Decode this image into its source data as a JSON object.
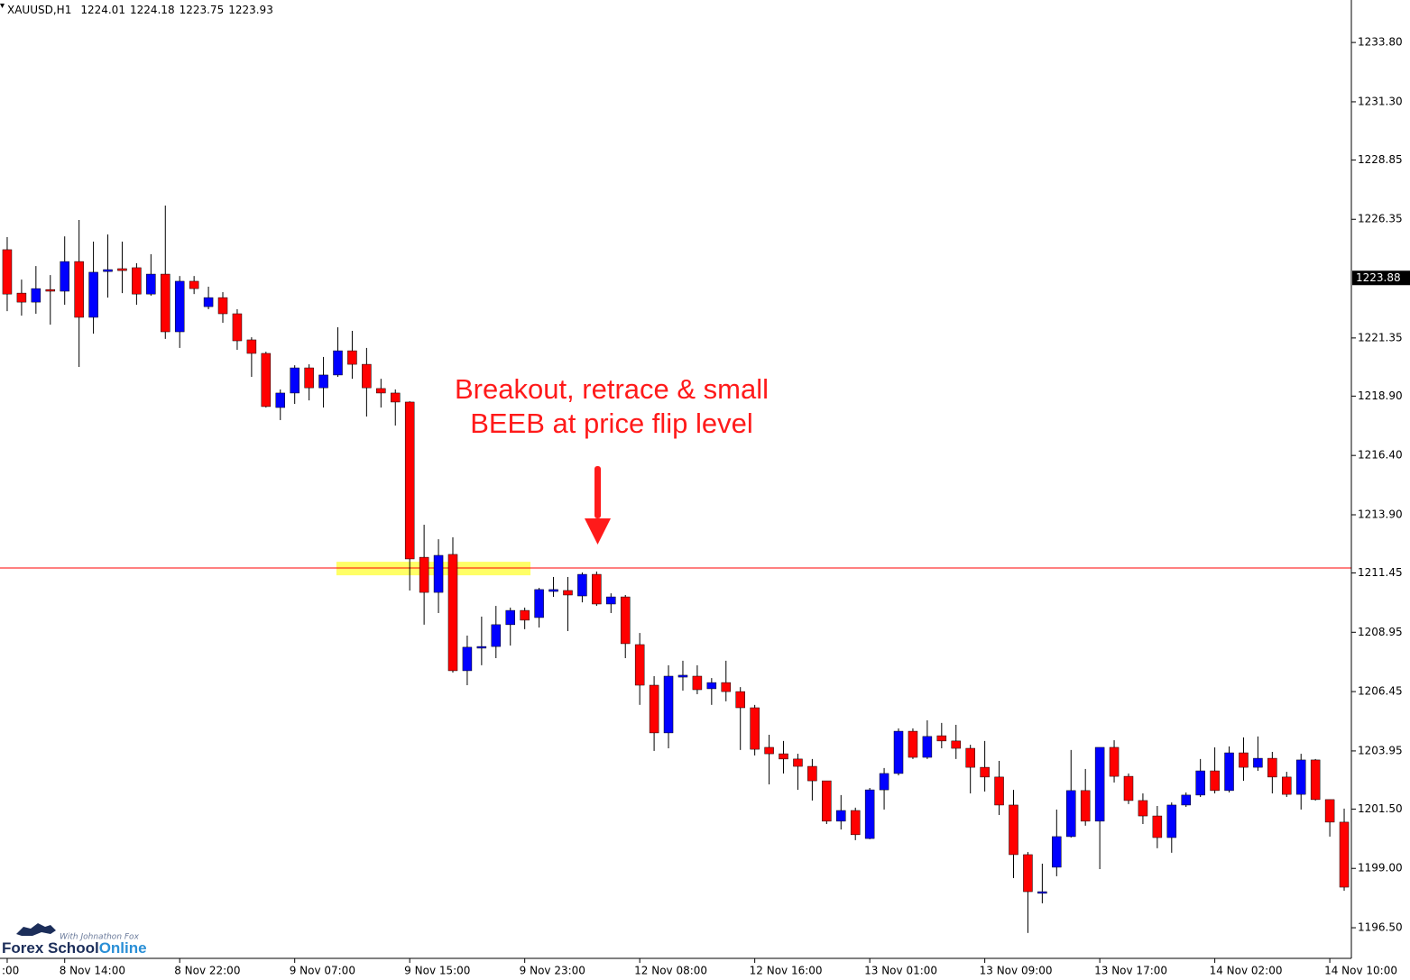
{
  "header": {
    "symbol": "XAUUSD,H1",
    "ohlc": [
      1224.01,
      1224.18,
      1223.75,
      1223.93
    ]
  },
  "annotation": {
    "lines": [
      "Breakout, retrace & small",
      "BEEB at price flip level"
    ],
    "color": "#ff1a1a"
  },
  "logo": {
    "tagline": "With Johnathon Fox",
    "name": "Forex School",
    "name_accent": "Online"
  },
  "chart_data": {
    "type": "candlestick",
    "up_color": "#0000ff",
    "down_color": "#ff0000",
    "wick_color": "#000000",
    "categories": [
      ":00",
      null,
      null,
      null,
      "8 Nov 14:00",
      null,
      null,
      null,
      null,
      null,
      null,
      null,
      "8 Nov 22:00",
      null,
      null,
      null,
      null,
      null,
      null,
      null,
      "9 Nov 07:00",
      null,
      null,
      null,
      null,
      null,
      null,
      null,
      "9 Nov 15:00",
      null,
      null,
      null,
      null,
      null,
      null,
      null,
      "9 Nov 23:00",
      null,
      null,
      null,
      null,
      null,
      null,
      null,
      "12 Nov 08:00",
      null,
      null,
      null,
      null,
      null,
      null,
      null,
      "12 Nov 16:00",
      null,
      null,
      null,
      null,
      null,
      null,
      null,
      "13 Nov 01:00",
      null,
      null,
      null,
      null,
      null,
      null,
      null,
      "13 Nov 09:00",
      null,
      null,
      null,
      null,
      null,
      null,
      null,
      "13 Nov 17:00",
      null,
      null,
      null,
      null,
      null,
      null,
      null,
      "14 Nov 02:00",
      null,
      null,
      null,
      null,
      null,
      null,
      null,
      "14 Nov 10:00",
      null
    ],
    "open": [
      1225.07,
      1223.24,
      1222.86,
      1223.39,
      1223.32,
      1224.57,
      1222.22,
      1224.15,
      1224.27,
      1224.31,
      1223.2,
      1224.04,
      1221.61,
      1223.74,
      1222.67,
      1223.05,
      1222.37,
      1221.27,
      1220.7,
      1218.42,
      1219.03,
      1220.09,
      1219.25,
      1219.79,
      1220.81,
      1220.24,
      1219.22,
      1219.03,
      1218.65,
      1212.11,
      1210.63,
      1212.23,
      1207.33,
      1208.28,
      1208.35,
      1209.27,
      1209.87,
      1209.57,
      1210.67,
      1210.71,
      1210.48,
      1211.39,
      1210.14,
      1210.44,
      1208.43,
      1206.72,
      1204.71,
      1207.06,
      1207.1,
      1206.57,
      1206.83,
      1206.45,
      1205.77,
      1204.1,
      1203.83,
      1203.61,
      1203.3,
      1202.69,
      1200.99,
      1201.44,
      1200.26,
      1202.31,
      1203.0,
      1204.78,
      1203.68,
      1204.59,
      1204.37,
      1204.06,
      1203.26,
      1202.85,
      1201.67,
      1199.58,
      1197.95,
      1199.05,
      1200.34,
      1202.28,
      1200.99,
      1204.1,
      1202.88,
      1201.86,
      1201.21,
      1200.3,
      1201.67,
      1202.09,
      1203.11,
      1202.28,
      1203.87,
      1203.26,
      1203.64,
      1202.85,
      1202.12,
      1203.57,
      1201.9,
      1200.95
    ],
    "high": [
      1225.6,
      1223.81,
      1224.38,
      1224.0,
      1225.63,
      1226.32,
      1225.41,
      1225.71,
      1225.41,
      1224.5,
      1224.88,
      1226.93,
      1223.96,
      1223.96,
      1223.51,
      1223.28,
      1222.56,
      1221.38,
      1220.77,
      1219.18,
      1220.2,
      1220.24,
      1220.55,
      1221.8,
      1221.65,
      1220.93,
      1219.63,
      1219.18,
      1218.68,
      1213.48,
      1212.87,
      1212.95,
      1208.81,
      1209.61,
      1210.06,
      1209.99,
      1209.99,
      1210.82,
      1211.28,
      1211.28,
      1211.47,
      1211.51,
      1210.59,
      1210.52,
      1208.92,
      1207.1,
      1207.56,
      1207.75,
      1207.56,
      1207.02,
      1207.75,
      1206.64,
      1205.89,
      1204.63,
      1204.37,
      1203.83,
      1203.61,
      1202.69,
      1202.09,
      1201.56,
      1202.39,
      1203.23,
      1204.9,
      1204.9,
      1205.24,
      1205.13,
      1205.05,
      1204.21,
      1204.37,
      1203.53,
      1202.31,
      1199.69,
      1199.2,
      1201.48,
      1203.99,
      1203.19,
      1204.1,
      1204.4,
      1203.0,
      1202.16,
      1201.63,
      1201.78,
      1202.2,
      1203.61,
      1204.1,
      1204.14,
      1204.52,
      1204.56,
      1203.91,
      1203.07,
      1203.83,
      1203.61,
      1201.9,
      1201.52
    ],
    "low": [
      1222.48,
      1222.29,
      1222.37,
      1221.91,
      1222.75,
      1220.13,
      1221.53,
      1223.05,
      1223.24,
      1222.75,
      1223.13,
      1221.31,
      1220.93,
      1223.2,
      1222.56,
      1221.99,
      1220.85,
      1219.71,
      1218.42,
      1217.89,
      1218.57,
      1218.72,
      1218.42,
      1219.71,
      1219.63,
      1218.04,
      1218.42,
      1217.66,
      1210.71,
      1209.27,
      1209.76,
      1207.25,
      1206.72,
      1207.56,
      1207.86,
      1208.39,
      1209.08,
      1209.15,
      1210.44,
      1209.0,
      1210.21,
      1210.06,
      1209.76,
      1207.86,
      1205.89,
      1203.95,
      1204.06,
      1206.49,
      1206.34,
      1205.89,
      1206.04,
      1203.99,
      1203.76,
      1202.54,
      1203.0,
      1202.31,
      1201.86,
      1200.87,
      1200.64,
      1200.19,
      1200.23,
      1201.48,
      1202.92,
      1203.61,
      1203.61,
      1204.06,
      1203.61,
      1202.16,
      1202.24,
      1201.25,
      1198.59,
      1196.28,
      1197.53,
      1198.67,
      1200.3,
      1200.8,
      1198.97,
      1202.62,
      1201.71,
      1200.87,
      1199.85,
      1199.66,
      1201.59,
      1202.01,
      1202.16,
      1202.2,
      1202.69,
      1203.11,
      1202.16,
      1202.01,
      1201.48,
      1201.86,
      1200.34,
      1198.06
    ],
    "close": [
      1223.2,
      1222.86,
      1223.43,
      1223.32,
      1224.57,
      1222.22,
      1224.12,
      1224.23,
      1224.19,
      1223.2,
      1224.04,
      1221.61,
      1223.74,
      1223.43,
      1223.05,
      1222.37,
      1221.23,
      1220.7,
      1218.46,
      1219.03,
      1220.09,
      1219.25,
      1219.79,
      1220.81,
      1220.24,
      1219.25,
      1219.03,
      1218.65,
      1212.04,
      1210.63,
      1212.19,
      1207.33,
      1208.32,
      1208.35,
      1209.27,
      1209.87,
      1209.46,
      1210.75,
      1210.75,
      1210.52,
      1211.39,
      1210.14,
      1210.44,
      1208.47,
      1206.72,
      1204.71,
      1207.1,
      1207.14,
      1206.53,
      1206.83,
      1206.45,
      1205.77,
      1204.02,
      1203.83,
      1203.61,
      1203.3,
      1202.69,
      1200.99,
      1201.44,
      1200.42,
      1202.31,
      1203.0,
      1204.78,
      1203.68,
      1204.56,
      1204.37,
      1204.06,
      1203.26,
      1202.85,
      1201.67,
      1199.58,
      1198.02,
      1198.02,
      1200.34,
      1202.28,
      1200.99,
      1204.1,
      1202.88,
      1201.86,
      1201.21,
      1200.3,
      1201.67,
      1202.09,
      1203.11,
      1202.28,
      1203.87,
      1203.26,
      1203.64,
      1202.85,
      1202.12,
      1203.57,
      1201.9,
      1200.95,
      1198.21
    ],
    "ylim": [
      1195.21,
      1235.59
    ],
    "yticks": [
      {
        "value": 1233.8,
        "label": "1233.80"
      },
      {
        "value": 1231.3,
        "label": "1231.30"
      },
      1228.85,
      1226.35,
      1221.35,
      {
        "value": 1218.9,
        "label": "1218.90"
      },
      {
        "value": 1216.4,
        "label": "1216.40"
      },
      {
        "value": 1213.9,
        "label": "1213.90"
      },
      1211.45,
      1208.95,
      1206.45,
      1203.95,
      {
        "value": 1201.5,
        "label": "1201.50"
      },
      {
        "value": 1199,
        "label": "1199.00"
      },
      {
        "value": 1196.5,
        "label": "1196.50"
      }
    ],
    "current_price": 1223.88,
    "level": 1211.66,
    "level_color": "#ff0000",
    "zone": {
      "from": 1211.92,
      "to": 1211.35,
      "start": 23.4,
      "end": 36.9,
      "color": "#ffff33"
    }
  }
}
